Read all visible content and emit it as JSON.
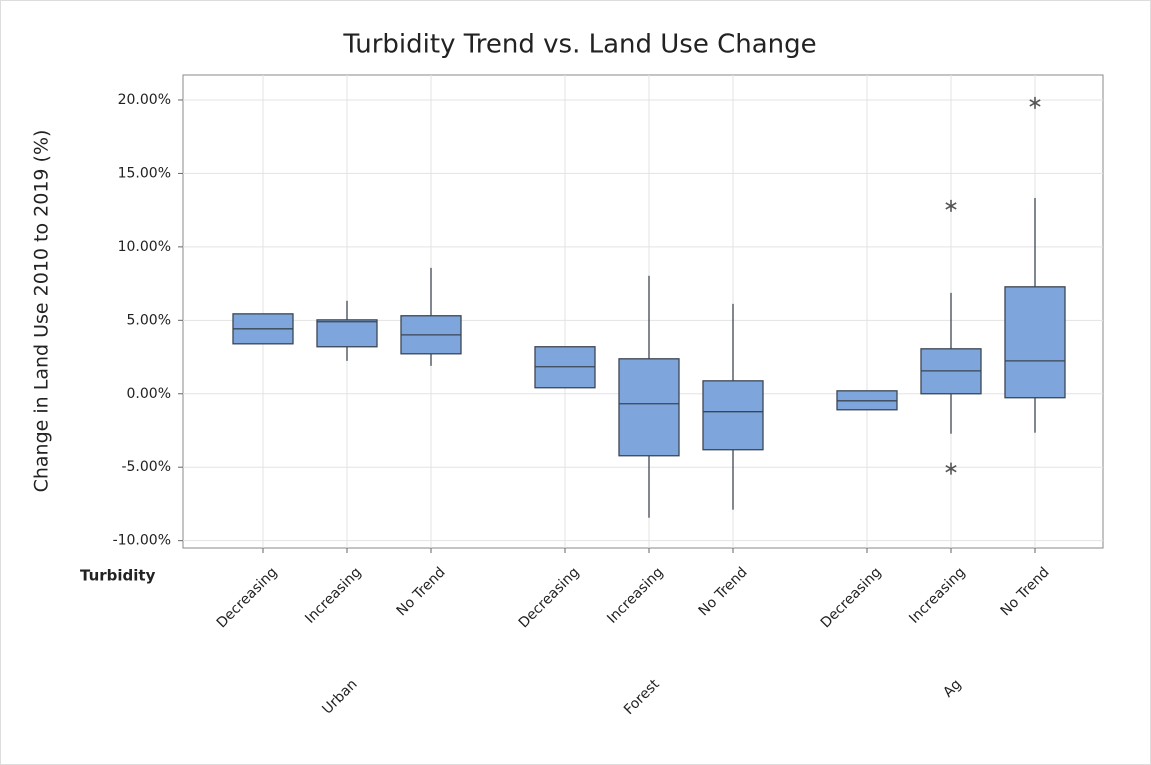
{
  "chart_data": {
    "type": "box",
    "title": "Turbidity Trend vs. Land Use Change",
    "y_label": "Change in Land Use 2010 to 2019 (%)",
    "x_label": "Turbidity",
    "color": "#7ea6dd",
    "edge_color": "#3b4653",
    "grid": true,
    "ylim": [
      -10.5,
      21.7
    ],
    "yticks": [
      {
        "value": -10,
        "label": "-10.00%"
      },
      {
        "value": -5,
        "label": "-5.00%"
      },
      {
        "value": 0,
        "label": "0.00%"
      },
      {
        "value": 5,
        "label": "5.00%"
      },
      {
        "value": 10,
        "label": "10.00%"
      },
      {
        "value": 15,
        "label": "15.00%"
      },
      {
        "value": 20,
        "label": "20.00%"
      }
    ],
    "groups": [
      {
        "name": "Urban",
        "categories": [
          "Decreasing",
          "Increasing",
          "No Trend"
        ],
        "boxes": [
          {
            "q1": 3.4,
            "median": 4.42,
            "q3": 5.44
          },
          {
            "whisker_low": 2.24,
            "q1": 3.2,
            "median": 4.9,
            "q3": 5.03,
            "whisker_high": 6.33
          },
          {
            "whisker_low": 1.9,
            "q1": 2.72,
            "median": 4.01,
            "q3": 5.31,
            "whisker_high": 8.57
          }
        ]
      },
      {
        "name": "Forest",
        "categories": [
          "Decreasing",
          "Increasing",
          "No Trend"
        ],
        "boxes": [
          {
            "q1": 0.41,
            "median": 1.84,
            "q3": 3.2
          },
          {
            "whisker_low": -8.44,
            "q1": -4.22,
            "median": -0.68,
            "q3": 2.38,
            "whisker_high": 8.03
          },
          {
            "whisker_low": -7.89,
            "q1": -3.81,
            "median": -1.22,
            "q3": 0.88,
            "whisker_high": 6.12
          }
        ]
      },
      {
        "name": "Ag",
        "categories": [
          "Decreasing",
          "Increasing",
          "No Trend"
        ],
        "boxes": [
          {
            "q1": -1.09,
            "median": -0.48,
            "q3": 0.2
          },
          {
            "whisker_low": -2.72,
            "q1": 0,
            "median": 1.56,
            "q3": 3.06,
            "whisker_high": 6.87,
            "outliers": [
              12.79,
              -5.1
            ]
          },
          {
            "whisker_low": -2.65,
            "q1": -0.27,
            "median": 2.24,
            "q3": 7.28,
            "whisker_high": 13.33,
            "outliers": [
              19.8
            ]
          }
        ]
      }
    ]
  }
}
